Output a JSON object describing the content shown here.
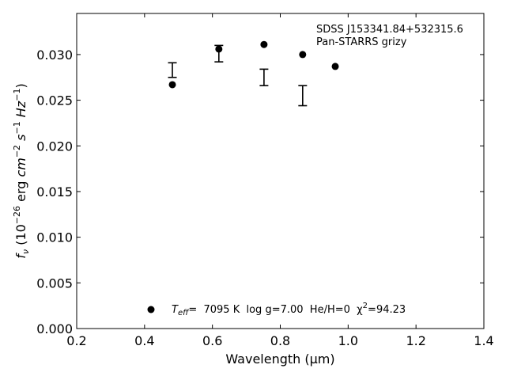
{
  "chart_data": {
    "type": "scatter",
    "xlabel": "Wavelength (μm)",
    "ylabel_parts": [
      "f",
      "ν",
      " (10",
      "−26",
      " erg ",
      "cm",
      "−2",
      " ",
      "s",
      "−1",
      " ",
      "Hz",
      "−1",
      ")"
    ],
    "xlim": [
      0.2,
      1.4
    ],
    "ylim": [
      0.0,
      0.0345
    ],
    "xticks": [
      0.2,
      0.4,
      0.6,
      0.8,
      1.0,
      1.2,
      1.4
    ],
    "xtick_labels": [
      "0.2",
      "0.4",
      "0.6",
      "0.8",
      "1.0",
      "1.2",
      "1.4"
    ],
    "yticks": [
      0.0,
      0.005,
      0.01,
      0.015,
      0.02,
      0.025,
      0.03
    ],
    "ytick_labels": [
      "0.000",
      "0.005",
      "0.010",
      "0.015",
      "0.020",
      "0.025",
      "0.030"
    ],
    "grid": false,
    "annotation_lines": [
      "SDSS J153341.84+532315.6",
      "Pan-STARRS grizy"
    ],
    "model_points": {
      "x": [
        0.482,
        0.619,
        0.752,
        0.866,
        0.962
      ],
      "y": [
        0.0267,
        0.0306,
        0.0311,
        0.03,
        0.0287
      ]
    },
    "observed_errorbars": [
      {
        "x": 0.482,
        "low": 0.0275,
        "high": 0.0291
      },
      {
        "x": 0.619,
        "low": 0.0292,
        "high": 0.031
      },
      {
        "x": 0.752,
        "low": 0.0266,
        "high": 0.0284
      },
      {
        "x": 0.866,
        "low": 0.0244,
        "high": 0.0266
      }
    ],
    "legend": {
      "placement": "lower-center",
      "parts": [
        "T",
        "eff",
        "=  7095 K  log g=7.00  He/H=0  χ",
        "2",
        "=94.23"
      ]
    }
  }
}
